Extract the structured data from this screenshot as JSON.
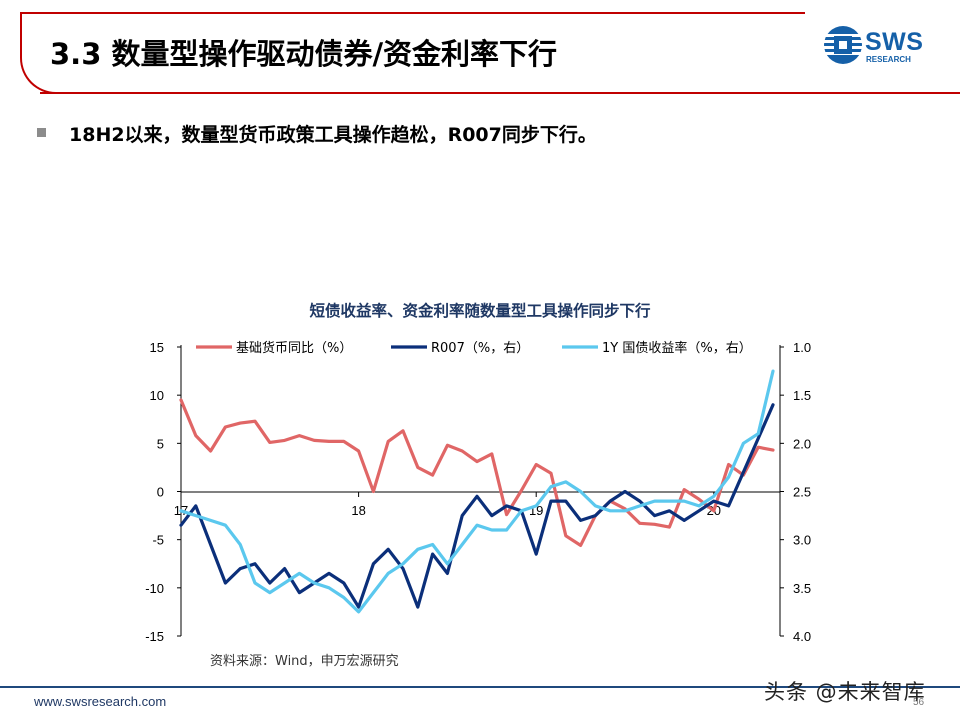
{
  "slide": {
    "title": "3.3 数量型操作驱动债券/资金利率下行",
    "bullet": "18H2以来，数量型货币政策工具操作趋松，R007同步下行。",
    "logo_text": "SWS",
    "logo_sub": "RESEARCH",
    "footer_url": "www.swsresearch.com",
    "page_number": "56",
    "watermark": "头条 @未来智库",
    "source": "资料来源：Wind，申万宏源研究"
  },
  "colors": {
    "brand_red": "#c00000",
    "brand_blue": "#1560a8",
    "series_m2": "#e06666",
    "series_r007": "#0b2f7a",
    "series_gov": "#5bc8ee"
  },
  "chart_data": {
    "type": "line",
    "title": "短债收益率、资金利率随数量型工具操作同步下行",
    "x_tick_labels": [
      "17",
      "18",
      "19",
      "20"
    ],
    "x_range": [
      0,
      40
    ],
    "x_tick_positions": [
      0,
      12,
      24,
      36
    ],
    "y_left": {
      "ylim": [
        -15,
        15
      ],
      "ticks": [
        "15",
        "10",
        "5",
        "0",
        "-5",
        "-10",
        "-15"
      ]
    },
    "y_right": {
      "ylim": [
        1.0,
        4.0
      ],
      "inverted": true,
      "ticks": [
        "1.0",
        "1.5",
        "2.0",
        "2.5",
        "3.0",
        "3.5",
        "4.0"
      ]
    },
    "series": [
      {
        "name": "基础货币同比（%）",
        "axis": "left",
        "values": [
          9.5,
          5.8,
          4.2,
          6.7,
          7.1,
          7.3,
          5.1,
          5.3,
          5.8,
          5.3,
          5.2,
          5.2,
          4.2,
          0.0,
          5.2,
          6.3,
          2.5,
          1.7,
          4.8,
          4.2,
          3.1,
          3.9,
          -2.4,
          0.1,
          2.8,
          1.9,
          -4.6,
          -5.6,
          -2.5,
          -1.0,
          -1.8,
          -3.3,
          -3.4,
          -3.7,
          0.2,
          -0.8,
          -2.0,
          2.8,
          1.7,
          4.6,
          4.3
        ]
      },
      {
        "name": "R007（%，右）",
        "axis": "right",
        "values": [
          2.85,
          2.65,
          3.05,
          3.45,
          3.3,
          3.25,
          3.45,
          3.3,
          3.55,
          3.45,
          3.35,
          3.45,
          3.7,
          3.25,
          3.1,
          3.3,
          3.7,
          3.15,
          3.35,
          2.75,
          2.55,
          2.75,
          2.65,
          2.7,
          3.15,
          2.6,
          2.6,
          2.8,
          2.75,
          2.6,
          2.5,
          2.6,
          2.75,
          2.7,
          2.8,
          2.7,
          2.6,
          2.65,
          2.3,
          1.95,
          1.6
        ]
      },
      {
        "name": "1Y 国债收益率（%，右）",
        "axis": "right",
        "values": [
          2.7,
          2.75,
          2.8,
          2.85,
          3.05,
          3.45,
          3.55,
          3.45,
          3.35,
          3.45,
          3.5,
          3.6,
          3.75,
          3.55,
          3.35,
          3.25,
          3.1,
          3.05,
          3.25,
          3.05,
          2.85,
          2.9,
          2.9,
          2.7,
          2.65,
          2.45,
          2.4,
          2.5,
          2.65,
          2.7,
          2.7,
          2.65,
          2.6,
          2.6,
          2.6,
          2.65,
          2.55,
          2.35,
          2.0,
          1.9,
          1.25
        ]
      }
    ]
  }
}
